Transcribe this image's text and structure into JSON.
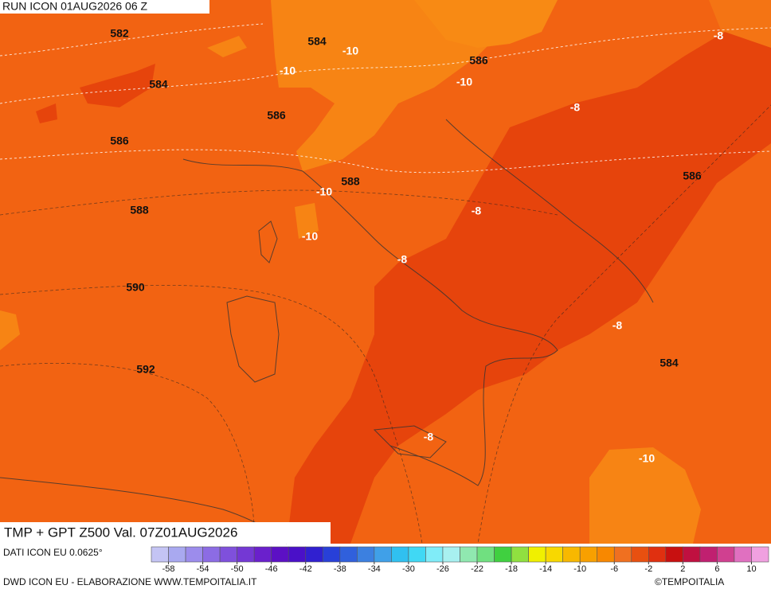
{
  "header": {
    "run": "RUN ICON 01AUG2026 06 Z"
  },
  "map": {
    "contour_labels": [
      582,
      584,
      584,
      586,
      586,
      586,
      586,
      588,
      588,
      590,
      592,
      584
    ],
    "temperature_labels": [
      -10,
      -10,
      -10,
      -8,
      -8,
      -10,
      -8,
      -10,
      -8,
      -8,
      -8,
      -10
    ]
  },
  "title": "TMP + GPT Z500 Val. 07Z01AUG2026",
  "source": "DATI ICON EU 0.0625°",
  "footer": "DWD ICON EU - ELABORAZIONE WWW.TEMPOITALIA.IT",
  "copyright": "©TEMPOITALIA",
  "colorbar": {
    "lim": [
      -60,
      12
    ],
    "ticks": [
      -58,
      -54,
      -50,
      -46,
      -42,
      -38,
      -34,
      -30,
      -26,
      -22,
      -18,
      -14,
      -10,
      -6,
      -2,
      2,
      6,
      10
    ],
    "colors": [
      "#c4c4f4",
      "#a9a9f0",
      "#9c8cec",
      "#8c6ce4",
      "#7f50dc",
      "#7438d4",
      "#6a20cc",
      "#5c10c4",
      "#4a10c8",
      "#3020d0",
      "#2840d8",
      "#3060dc",
      "#3c80e0",
      "#40a0e8",
      "#30c0f0",
      "#40d8f4",
      "#80ecf8",
      "#a8f0f0",
      "#90e8b0",
      "#70e080",
      "#40d040",
      "#90e040",
      "#f0f000",
      "#f8d800",
      "#f8b800",
      "#f8a000",
      "#f88800",
      "#f07020",
      "#e85010",
      "#e03010",
      "#c81010",
      "#c01040",
      "#c02070",
      "#d04090",
      "#e070c0",
      "#f0a0e0"
    ]
  }
}
